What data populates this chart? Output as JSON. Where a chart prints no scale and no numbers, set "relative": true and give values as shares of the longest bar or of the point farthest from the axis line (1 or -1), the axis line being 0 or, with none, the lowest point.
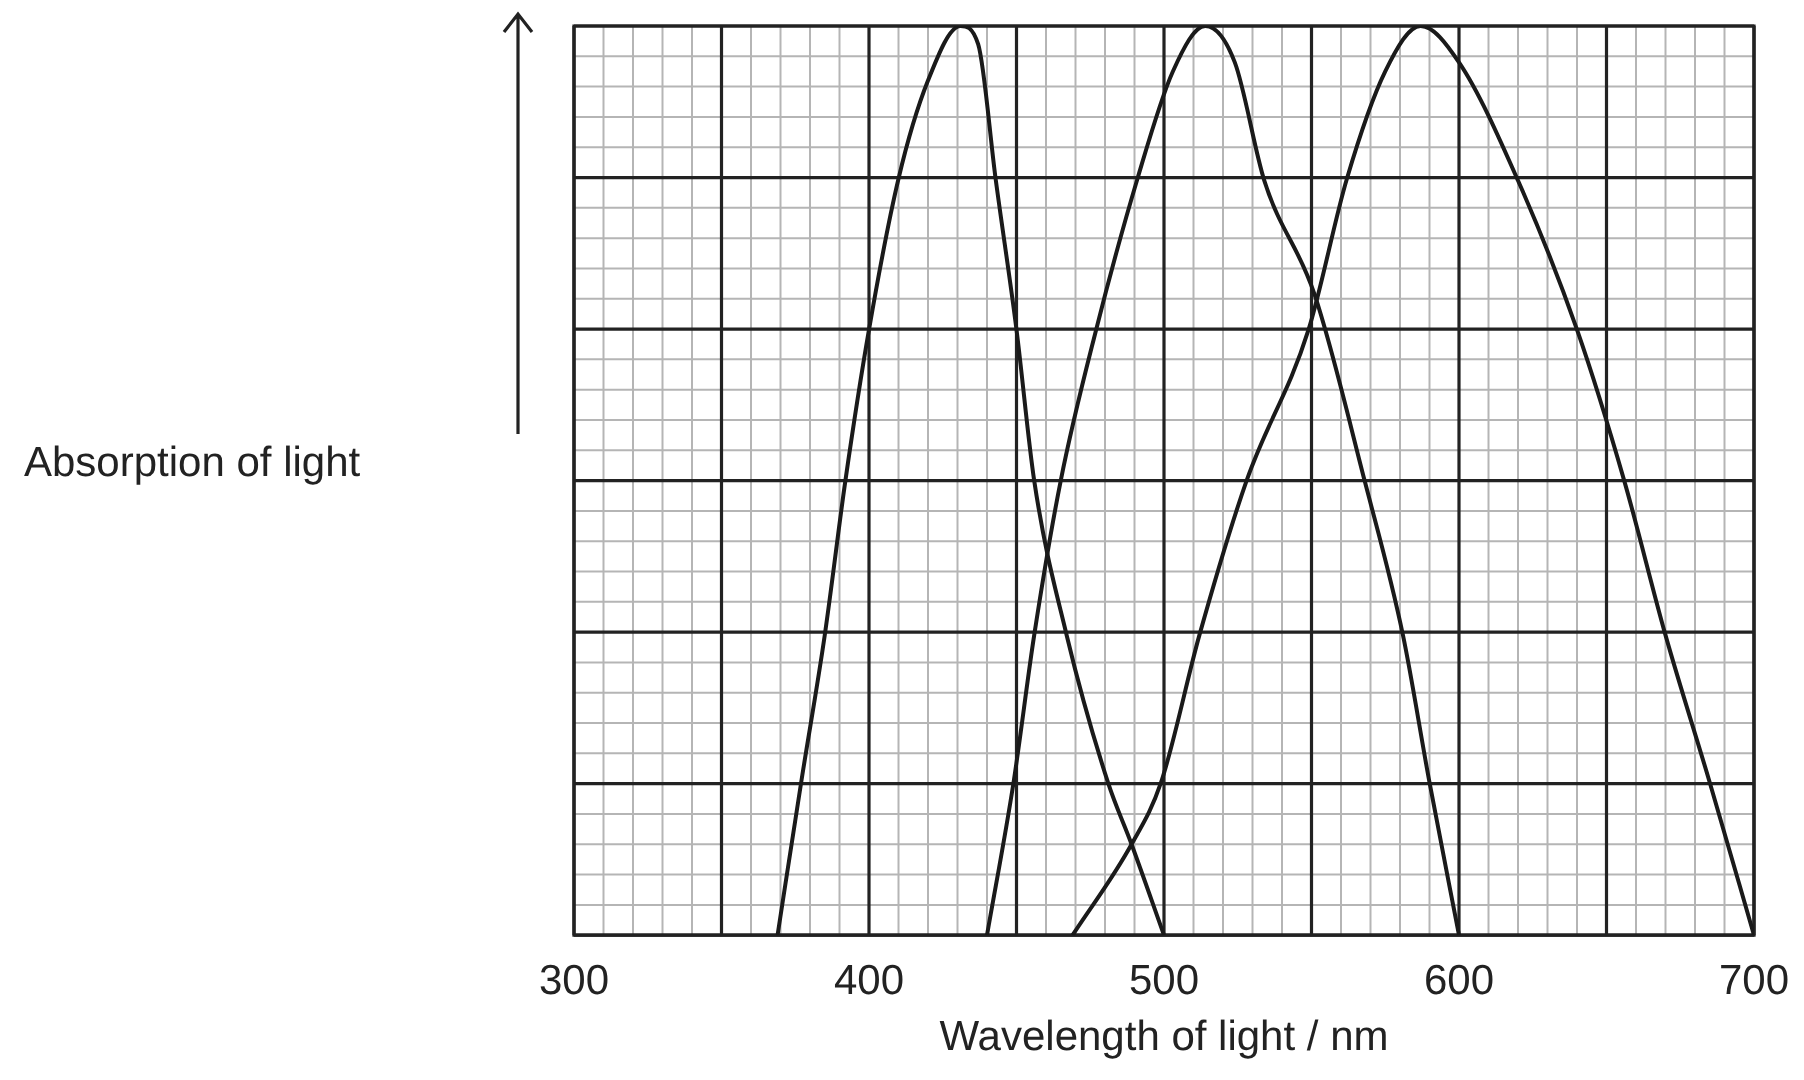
{
  "chart_data": {
    "type": "line",
    "relative": true,
    "xlabel": "Wavelength of light / nm",
    "ylabel": "Absorption of light",
    "xlim": [
      300,
      700
    ],
    "xticks": [
      300,
      {
        "value": 350,
        "label": null
      },
      400,
      {
        "value": 450,
        "label": null
      },
      500,
      {
        "value": 550,
        "label": null
      },
      600,
      {
        "value": 650,
        "label": null
      },
      700
    ],
    "grid": true,
    "legend": false,
    "marker": "none",
    "line_style": "solid",
    "series": [
      {
        "color": "#1a1a1a",
        "x": [
          369,
          377,
          385,
          392,
          400,
          410,
          420,
          431,
          437,
          443,
          450,
          456,
          467,
          481,
          489,
          500
        ],
        "values": [
          0,
          0.168,
          0.33,
          0.5,
          0.666,
          0.832,
          0.94,
          1,
          0.98,
          0.83,
          0.666,
          0.5,
          0.33,
          0.168,
          0.1,
          0
        ]
      },
      {
        "color": "#1a1a1a",
        "x": [
          440,
          449,
          456,
          465,
          477,
          491,
          503,
          514,
          524,
          534,
          551,
          568,
          581,
          590,
          600
        ],
        "values": [
          0,
          0.168,
          0.33,
          0.5,
          0.666,
          0.832,
          0.95,
          1,
          0.96,
          0.83,
          0.705,
          0.5,
          0.33,
          0.168,
          0
        ]
      },
      {
        "color": "#1a1a1a",
        "x": [
          469,
          489,
          499,
          512,
          528,
          549,
          562,
          575,
          587,
          600,
          620,
          640,
          656,
          670,
          685,
          700
        ],
        "values": [
          0,
          0.1,
          0.168,
          0.33,
          0.5,
          0.666,
          0.832,
          0.95,
          1,
          0.96,
          0.83,
          0.666,
          0.5,
          0.33,
          0.168,
          0
        ]
      }
    ]
  }
}
